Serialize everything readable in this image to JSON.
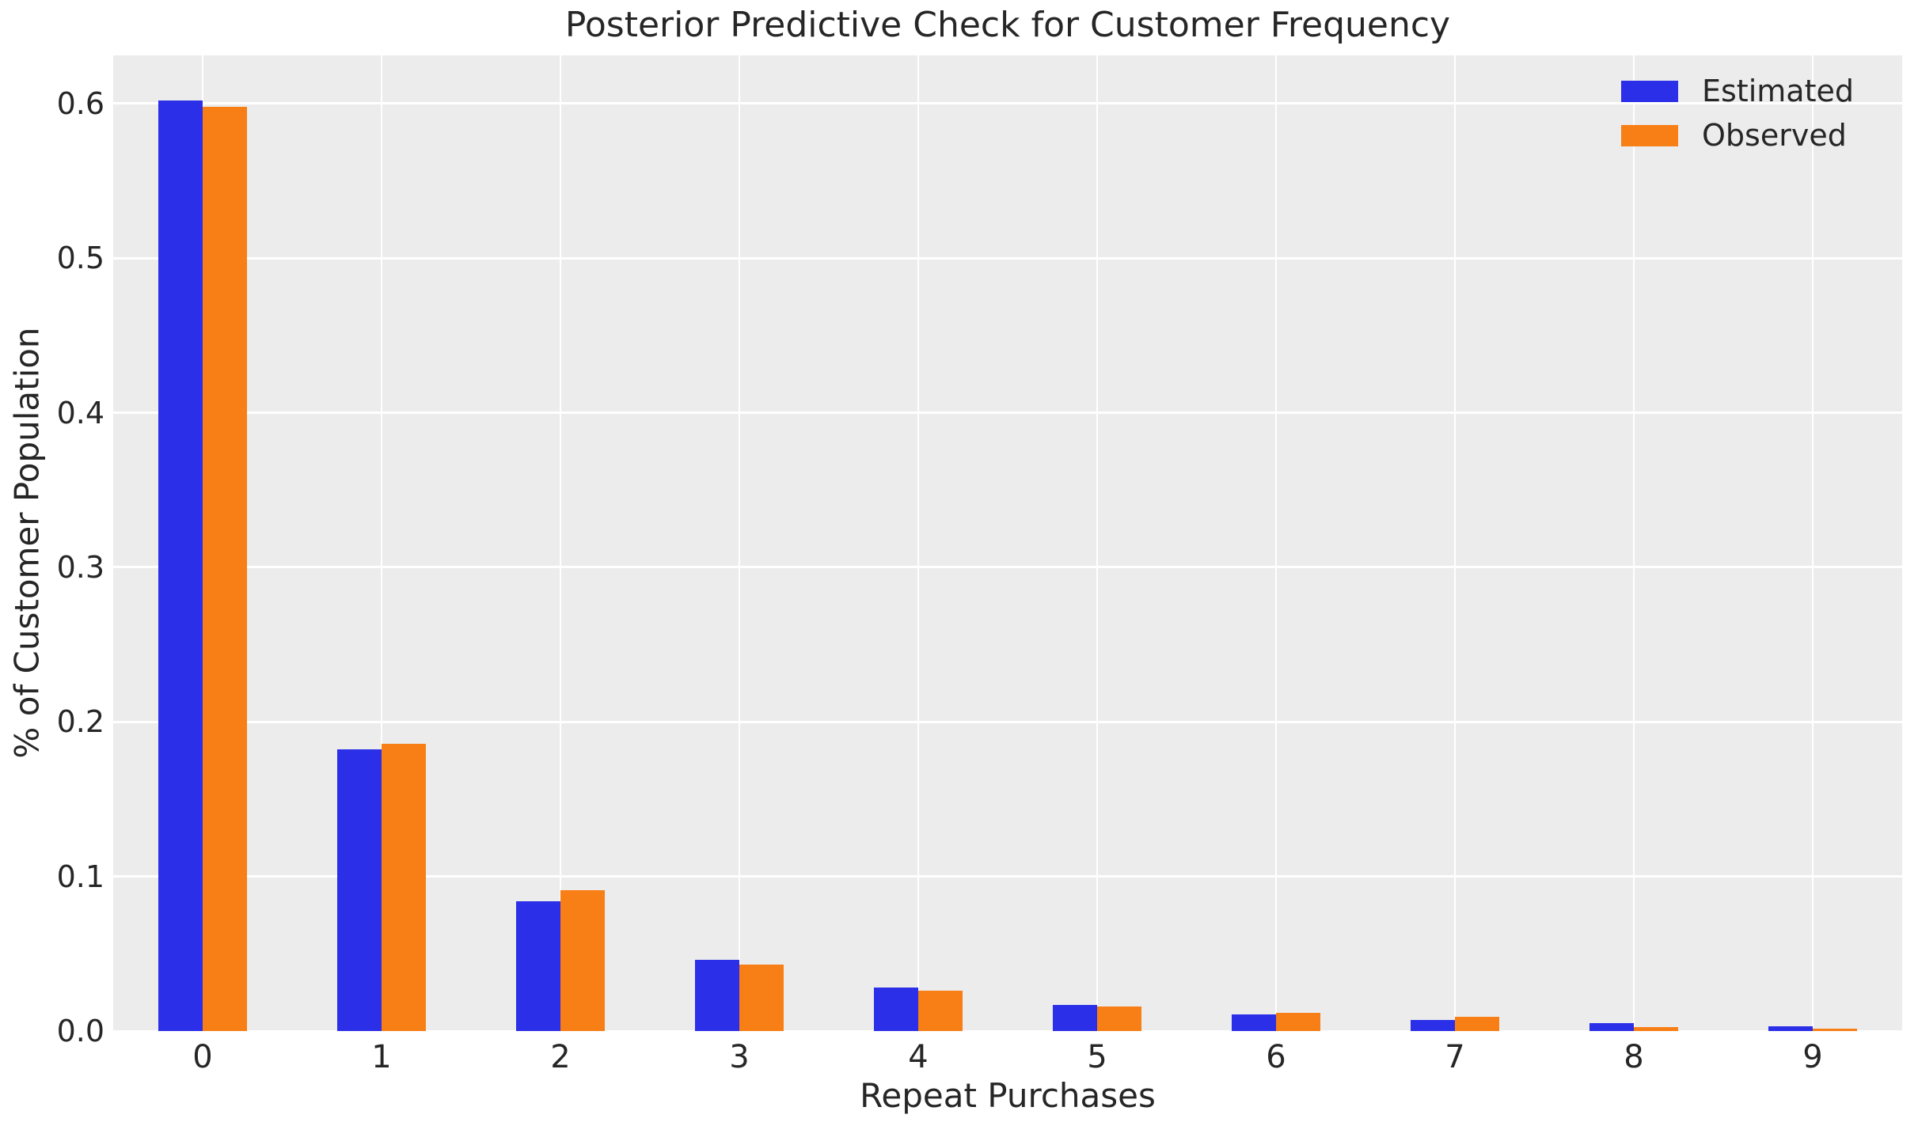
{
  "figure": {
    "background_color": "#ffffff",
    "plot_background_color": "#ececec",
    "gridline_color": "#ffffff",
    "text_color": "#262626"
  },
  "chart_data": {
    "type": "bar",
    "title": "Posterior Predictive Check for Customer Frequency",
    "xlabel": "Repeat Purchases",
    "ylabel": "% of Customer Population",
    "categories": [
      "0",
      "1",
      "2",
      "3",
      "4",
      "5",
      "6",
      "7",
      "8",
      "9"
    ],
    "series": [
      {
        "name": "Estimated",
        "color": "#2b2fe8",
        "values": [
          0.602,
          0.182,
          0.084,
          0.046,
          0.028,
          0.017,
          0.011,
          0.007,
          0.005,
          0.003
        ]
      },
      {
        "name": "Observed",
        "color": "#f87e16",
        "values": [
          0.598,
          0.186,
          0.091,
          0.043,
          0.026,
          0.016,
          0.012,
          0.009,
          0.0025,
          0.0015
        ]
      }
    ],
    "yticks": [
      "0.0",
      "0.1",
      "0.2",
      "0.3",
      "0.4",
      "0.5",
      "0.6"
    ],
    "ylim": [
      0,
      0.6312
    ],
    "grid": true,
    "legend_position": "upper right"
  }
}
